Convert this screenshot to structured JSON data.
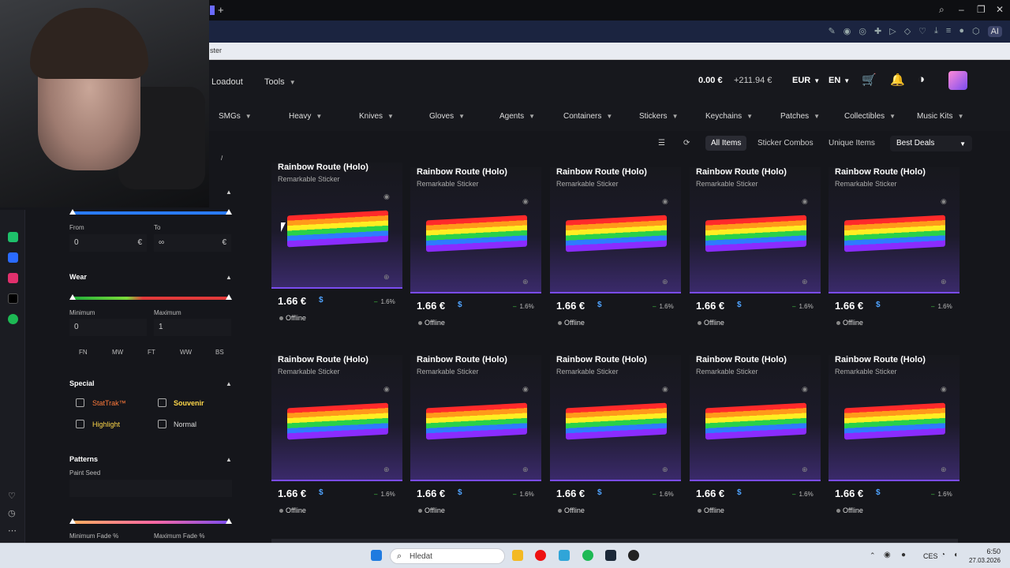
{
  "browser": {
    "bookmark_text": "ster",
    "ext_ai": "AI"
  },
  "nav": {
    "loadout": "Loadout",
    "tools": "Tools",
    "balance": "0.00 €",
    "plus_balance": "+211.94 €",
    "currency": "EUR",
    "language": "EN"
  },
  "categories": [
    "SMGs",
    "Heavy",
    "Knives",
    "Gloves",
    "Agents",
    "Containers",
    "Stickers",
    "Keychains",
    "Patches",
    "Collectibles",
    "Music Kits"
  ],
  "filters": {
    "price_from_label": "From",
    "price_to_label": "To",
    "price_from_value": "0",
    "price_to_value": "∞",
    "currency_symbol": "€",
    "wear_title": "Wear",
    "wear_min_label": "Minimum",
    "wear_max_label": "Maximum",
    "wear_min_value": "0",
    "wear_max_value": "1",
    "wear_grades": [
      "FN",
      "MW",
      "FT",
      "WW",
      "BS"
    ],
    "special_title": "Special",
    "stattrak": "StatTrak™",
    "souvenir": "Souvenir",
    "highlight": "Highlight",
    "normal": "Normal",
    "patterns_title": "Patterns",
    "paint_seed_label": "Paint Seed",
    "min_fade_label": "Minimum Fade %",
    "max_fade_label": "Maximum Fade %"
  },
  "toolbar": {
    "all_items": "All Items",
    "sticker_combos": "Sticker Combos",
    "unique_items": "Unique Items",
    "sort": "Best Deals"
  },
  "cards": [
    {
      "title": "Rainbow Route (Holo)",
      "subtitle": "Remarkable Sticker",
      "price": "1.66 €",
      "discount": "1.6%",
      "status": "Offline"
    },
    {
      "title": "Rainbow Route (Holo)",
      "subtitle": "Remarkable Sticker",
      "price": "1.66 €",
      "discount": "1.6%",
      "status": "Offline"
    },
    {
      "title": "Rainbow Route (Holo)",
      "subtitle": "Remarkable Sticker",
      "price": "1.66 €",
      "discount": "1.6%",
      "status": "Offline"
    },
    {
      "title": "Rainbow Route (Holo)",
      "subtitle": "Remarkable Sticker",
      "price": "1.66 €",
      "discount": "1.6%",
      "status": "Offline"
    },
    {
      "title": "Rainbow Route (Holo)",
      "subtitle": "Remarkable Sticker",
      "price": "1.66 €",
      "discount": "1.6%",
      "status": "Offline"
    },
    {
      "title": "Rainbow Route (Holo)",
      "subtitle": "Remarkable Sticker",
      "price": "1.66 €",
      "discount": "1.6%",
      "status": "Offline"
    },
    {
      "title": "Rainbow Route (Holo)",
      "subtitle": "Remarkable Sticker",
      "price": "1.66 €",
      "discount": "1.6%",
      "status": "Offline"
    },
    {
      "title": "Rainbow Route (Holo)",
      "subtitle": "Remarkable Sticker",
      "price": "1.66 €",
      "discount": "1.6%",
      "status": "Offline"
    },
    {
      "title": "Rainbow Route (Holo)",
      "subtitle": "Remarkable Sticker",
      "price": "1.66 €",
      "discount": "1.6%",
      "status": "Offline"
    },
    {
      "title": "Rainbow Route (Holo)",
      "subtitle": "Remarkable Sticker",
      "price": "1.66 €",
      "discount": "1.6%",
      "status": "Offline"
    }
  ],
  "taskbar": {
    "search_placeholder": "Hledat",
    "lang": "CES",
    "time": "6:50",
    "date": "27.03.2026"
  },
  "colors": {
    "accent": "#7a4cf0",
    "price_badge": "#4fa3ff",
    "stattrak": "#ff7a3a",
    "souvenir": "#ffd84a",
    "highlight": "#ffd84a"
  }
}
